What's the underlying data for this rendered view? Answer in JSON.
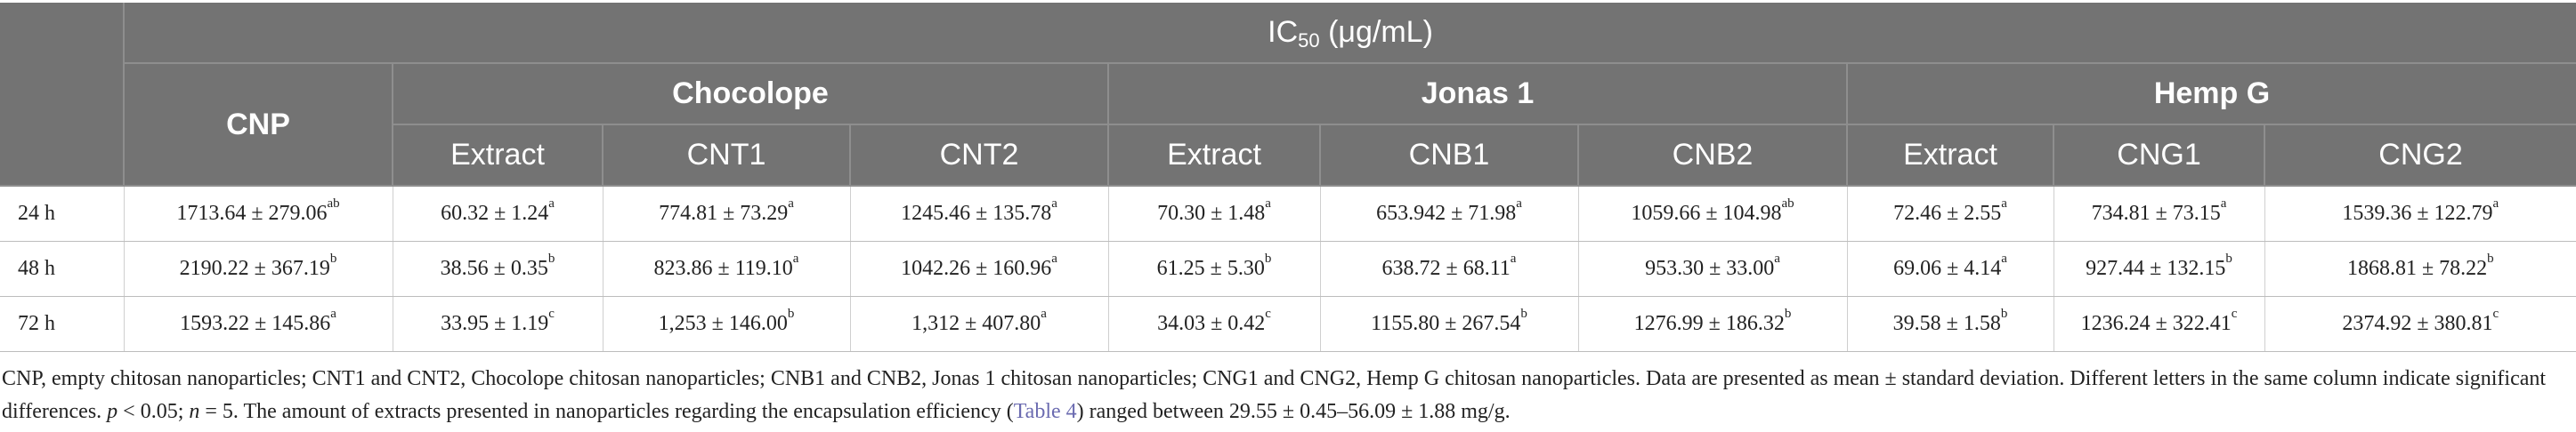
{
  "header": {
    "ic50_main": "IC",
    "ic50_sub": "50",
    "ic50_unit": " (μg/mL)",
    "cnp": "CNP",
    "groups": [
      "Chocolope",
      "Jonas 1",
      "Hemp G"
    ],
    "subcols": [
      "Extract",
      "CNT1",
      "CNT2",
      "Extract",
      "CNB1",
      "CNB2",
      "Extract",
      "CNG1",
      "CNG2"
    ]
  },
  "rows": [
    {
      "label": "24 h",
      "cells": [
        {
          "v": "1713.64 ± 279.06",
          "s": "ab"
        },
        {
          "v": "60.32 ± 1.24",
          "s": "a"
        },
        {
          "v": "774.81 ± 73.29",
          "s": "a"
        },
        {
          "v": "1245.46 ± 135.78",
          "s": "a"
        },
        {
          "v": "70.30 ± 1.48",
          "s": "a"
        },
        {
          "v": "653.942 ± 71.98",
          "s": "a"
        },
        {
          "v": "1059.66 ± 104.98",
          "s": "ab"
        },
        {
          "v": "72.46 ± 2.55",
          "s": "a"
        },
        {
          "v": "734.81 ± 73.15",
          "s": "a"
        },
        {
          "v": "1539.36 ± 122.79",
          "s": "a"
        }
      ]
    },
    {
      "label": "48 h",
      "cells": [
        {
          "v": "2190.22 ± 367.19",
          "s": "b"
        },
        {
          "v": "38.56 ± 0.35",
          "s": "b"
        },
        {
          "v": "823.86 ± 119.10",
          "s": "a"
        },
        {
          "v": "1042.26 ± 160.96",
          "s": "a"
        },
        {
          "v": "61.25 ± 5.30",
          "s": "b"
        },
        {
          "v": "638.72 ± 68.11",
          "s": "a"
        },
        {
          "v": "953.30 ± 33.00",
          "s": "a"
        },
        {
          "v": "69.06 ± 4.14",
          "s": "a"
        },
        {
          "v": "927.44 ± 132.15",
          "s": "b"
        },
        {
          "v": "1868.81 ± 78.22",
          "s": "b"
        }
      ]
    },
    {
      "label": "72 h",
      "cells": [
        {
          "v": "1593.22 ± 145.86",
          "s": "a"
        },
        {
          "v": "33.95 ± 1.19",
          "s": "c"
        },
        {
          "v": "1,253 ± 146.00",
          "s": "b"
        },
        {
          "v": "1,312 ± 407.80",
          "s": "a"
        },
        {
          "v": "34.03 ± 0.42",
          "s": "c"
        },
        {
          "v": "1155.80 ± 267.54",
          "s": "b"
        },
        {
          "v": "1276.99 ± 186.32",
          "s": "b"
        },
        {
          "v": "39.58 ± 1.58",
          "s": "b"
        },
        {
          "v": "1236.24 ± 322.41",
          "s": "c"
        },
        {
          "v": "2374.92 ± 380.81",
          "s": "c"
        }
      ]
    }
  ],
  "footnote": {
    "text_before": "CNP, empty chitosan nanoparticles; CNT1 and CNT2, Chocolope chitosan nanoparticles; CNB1 and CNB2, Jonas 1 chitosan nanoparticles; CNG1 and CNG2, Hemp G chitosan nanoparticles. Data are presented as mean ± standard deviation. Different letters in the same column indicate significant differences. ",
    "p": "p",
    "p_text": " < 0.05; ",
    "n": "n",
    "n_text": " = 5. The amount of extracts presented in nanoparticles regarding the encapsulation efficiency (",
    "link": "Table 4",
    "text_after": ") ranged between 29.55 ± 0.45–56.09 ± 1.88 mg/g."
  },
  "colors": {
    "header_bg": "#737373",
    "header_text": "#ffffff",
    "link": "#6b6bb0"
  }
}
